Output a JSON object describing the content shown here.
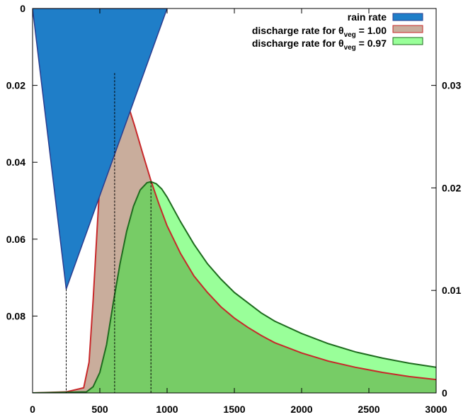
{
  "chart_data": {
    "type": "area",
    "title": "",
    "xlabel": "",
    "ylabel_left": "",
    "ylabel_right": "",
    "x_range": [
      0,
      3000
    ],
    "y_left_range": [
      0,
      0.1
    ],
    "y_left_inverted": true,
    "y_right_range": [
      0,
      0.0375
    ],
    "grid": false,
    "legend_position": "top-right",
    "x_ticks": [
      "0",
      "500",
      "1000",
      "1500",
      "2000",
      "2500",
      "3000"
    ],
    "x_tick_values": [
      0,
      500,
      1000,
      1500,
      2000,
      2500,
      3000
    ],
    "y_left_ticks": [
      "0",
      "0.02",
      "0.04",
      "0.06",
      "0.08"
    ],
    "y_left_tick_values": [
      0,
      0.02,
      0.04,
      0.06,
      0.08
    ],
    "y_right_ticks": [
      "0",
      "0.01",
      "0.02",
      "0.03"
    ],
    "y_right_tick_values": [
      0,
      0.01,
      0.02,
      0.03
    ],
    "series": [
      {
        "name": "rain rate",
        "axis": "left",
        "color": "#1f7ec8",
        "edge": "#2a3d8f",
        "x": [
          0,
          250,
          1000
        ],
        "y": [
          0,
          0.073,
          0
        ]
      },
      {
        "name_main": "discharge rate for θ",
        "name_sub": "veg",
        "name_val": " = 1.00",
        "axis": "right",
        "color": "#c9ad9c",
        "edge": "#c8282a",
        "peak_x": 610,
        "x": [
          0,
          250,
          380,
          420,
          450,
          480,
          500,
          540,
          580,
          610,
          640,
          700,
          760,
          820,
          880,
          940,
          1000,
          1100,
          1200,
          1300,
          1400,
          1500,
          1600,
          1700,
          1800,
          2000,
          2200,
          2400,
          2600,
          2800,
          3000
        ],
        "y": [
          0,
          0.0001,
          0.0005,
          0.003,
          0.009,
          0.016,
          0.0205,
          0.0265,
          0.0299,
          0.0312,
          0.0308,
          0.0285,
          0.026,
          0.0233,
          0.0207,
          0.0184,
          0.0163,
          0.0136,
          0.0114,
          0.0098,
          0.0084,
          0.0073,
          0.0064,
          0.0056,
          0.0049,
          0.0039,
          0.0031,
          0.0025,
          0.002,
          0.0016,
          0.0013
        ]
      },
      {
        "name_main": "discharge rate for θ",
        "name_sub": "veg",
        "name_val": " = 0.97",
        "axis": "right",
        "color": "#99ff99",
        "edge": "#1e6b1e",
        "peak_x": 880,
        "x": [
          0,
          400,
          450,
          500,
          550,
          600,
          650,
          700,
          750,
          800,
          850,
          880,
          920,
          960,
          1000,
          1050,
          1100,
          1200,
          1300,
          1400,
          1500,
          1600,
          1700,
          1800,
          2000,
          2200,
          2400,
          2600,
          2800,
          3000
        ],
        "y": [
          0,
          0.0001,
          0.0006,
          0.002,
          0.0047,
          0.0088,
          0.0126,
          0.0158,
          0.0182,
          0.0198,
          0.0205,
          0.0206,
          0.0204,
          0.0199,
          0.0191,
          0.0179,
          0.0167,
          0.0145,
          0.0126,
          0.0111,
          0.0098,
          0.0088,
          0.0078,
          0.007,
          0.0058,
          0.0048,
          0.004,
          0.0034,
          0.0029,
          0.0025
        ]
      }
    ],
    "overlap_color": "#77cc66"
  }
}
